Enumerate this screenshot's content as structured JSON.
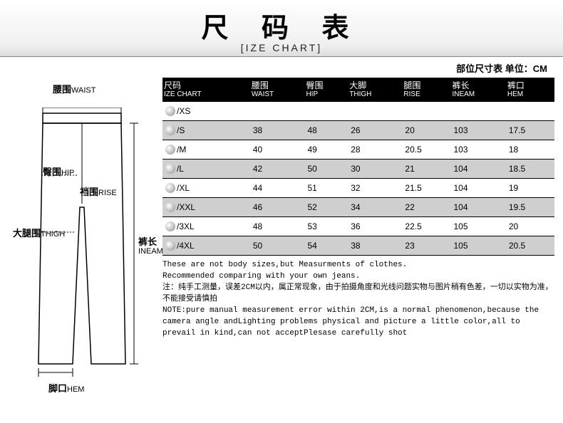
{
  "header": {
    "title_cn": "尺 码 表",
    "title_en": "[IZE CHART]",
    "sub": "部位尺寸表  单位：CM"
  },
  "diagram": {
    "waist": {
      "cn": "腰围",
      "en": "WAIST"
    },
    "hip": {
      "cn": "臀围",
      "en": "HIP"
    },
    "rise": {
      "cn": "裆围",
      "en": "RISE"
    },
    "thigh": {
      "cn": "大腿围",
      "en": "THIGH"
    },
    "inseam": {
      "cn": "裤长",
      "en": "INEAM"
    },
    "hem": {
      "cn": "脚口",
      "en": "HEM"
    }
  },
  "columns": [
    {
      "cn": "尺码",
      "en": "IZE CHART"
    },
    {
      "cn": "腰围",
      "en": "WAIST"
    },
    {
      "cn": "臀围",
      "en": "HIP"
    },
    {
      "cn": "大脚",
      "en": "THIGH"
    },
    {
      "cn": "腿围",
      "en": "RISE"
    },
    {
      "cn": "裤长",
      "en": "INEAM"
    },
    {
      "cn": "裤口",
      "en": "HEM"
    }
  ],
  "rows": [
    {
      "size": "/XS",
      "v": [
        "",
        "",
        "",
        "",
        "",
        ""
      ]
    },
    {
      "size": "/S",
      "v": [
        "38",
        "48",
        "26",
        "20",
        "103",
        "17.5"
      ]
    },
    {
      "size": "/M",
      "v": [
        "40",
        "49",
        "28",
        "20.5",
        "103",
        "18"
      ]
    },
    {
      "size": "/L",
      "v": [
        "42",
        "50",
        "30",
        "21",
        "104",
        "18.5"
      ]
    },
    {
      "size": "/XL",
      "v": [
        "44",
        "51",
        "32",
        "21.5",
        "104",
        "19"
      ]
    },
    {
      "size": "/XXL",
      "v": [
        "46",
        "52",
        "34",
        "22",
        "104",
        "19.5"
      ]
    },
    {
      "size": "/3XL",
      "v": [
        "48",
        "53",
        "36",
        "22.5",
        "105",
        "20"
      ]
    },
    {
      "size": "/4XL",
      "v": [
        "50",
        "54",
        "38",
        "23",
        "105",
        "20.5"
      ]
    }
  ],
  "notes": {
    "l1": "These are not body sizes,but Measurments of clothes.",
    "l2": "Recommended comparing with your own jeans.",
    "l3": "注：纯手工测量，误差2CM以内，属正常现象，由于拍摄角度和光线问题实物与图片稍有色差，一切以实物为准，不能接受请慎拍",
    "l4": "NOTE:pure manual measurement error within 2CM,is a normal phenomenon,because the camera angle andLighting problems physical and picture a little color,all to prevail in kind,can not acceptPlesase carefully shot"
  },
  "colors": {
    "header_bg": "#000000",
    "odd_row": "#cfcfcf",
    "even_row": "#ffffff",
    "border": "#000000"
  }
}
